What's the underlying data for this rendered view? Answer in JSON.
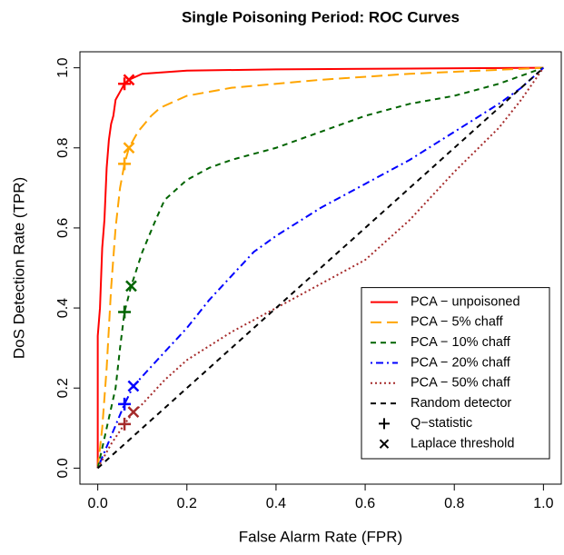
{
  "chart_data": {
    "type": "line",
    "title": "Single Poisoning Period: ROC Curves",
    "x_label": "False Alarm Rate (FPR)",
    "y_label": "DoS Detection Rate (TPR)",
    "xlim": [
      -0.04,
      1.04
    ],
    "ylim": [
      -0.04,
      1.04
    ],
    "xticks": [
      {
        "value": 0,
        "label": "0.0"
      },
      0.2,
      0.4,
      0.6,
      0.8,
      {
        "value": 1,
        "label": "1.0"
      }
    ],
    "yticks": [
      {
        "value": 0,
        "label": "0.0"
      },
      0.2,
      0.4,
      0.6,
      0.8,
      {
        "value": 1,
        "label": "1.0"
      }
    ],
    "legend": "bottomright",
    "series": [
      {
        "name": "PCA − unpoisoned",
        "color": "#ff0000",
        "dash": "solid",
        "x": [
          0,
          0,
          0.005,
          0.01,
          0.015,
          0.02,
          0.025,
          0.03,
          0.035,
          0.04,
          0.05,
          0.06,
          0.07,
          0.1,
          0.2,
          0.4,
          0.7,
          1
        ],
        "values": [
          0,
          0.33,
          0.4,
          0.55,
          0.62,
          0.75,
          0.82,
          0.86,
          0.88,
          0.92,
          0.94,
          0.96,
          0.97,
          0.985,
          0.993,
          0.996,
          0.998,
          1
        ]
      },
      {
        "name": "PCA − 5% chaff",
        "color": "#ffa500",
        "dash": "longdash",
        "x": [
          0,
          0.01,
          0.02,
          0.03,
          0.04,
          0.05,
          0.06,
          0.07,
          0.09,
          0.12,
          0.14,
          0.2,
          0.3,
          0.5,
          0.7,
          0.9,
          1
        ],
        "values": [
          0,
          0.1,
          0.25,
          0.45,
          0.6,
          0.7,
          0.76,
          0.8,
          0.84,
          0.88,
          0.9,
          0.93,
          0.95,
          0.97,
          0.985,
          0.995,
          1
        ]
      },
      {
        "name": "PCA − 10% chaff",
        "color": "#006400",
        "dash": "dashed",
        "x": [
          0,
          0.02,
          0.04,
          0.05,
          0.06,
          0.075,
          0.1,
          0.13,
          0.15,
          0.2,
          0.25,
          0.3,
          0.4,
          0.5,
          0.6,
          0.7,
          0.8,
          0.9,
          0.95,
          1
        ],
        "values": [
          0,
          0.1,
          0.2,
          0.3,
          0.39,
          0.455,
          0.54,
          0.62,
          0.67,
          0.72,
          0.75,
          0.77,
          0.8,
          0.84,
          0.88,
          0.91,
          0.93,
          0.96,
          0.98,
          1
        ]
      },
      {
        "name": "PCA − 20% chaff",
        "color": "#0000ff",
        "dash": "dotdash",
        "x": [
          0,
          0.03,
          0.06,
          0.08,
          0.15,
          0.2,
          0.25,
          0.3,
          0.35,
          0.4,
          0.5,
          0.6,
          0.7,
          0.8,
          0.9,
          0.95,
          1
        ],
        "values": [
          0,
          0.08,
          0.16,
          0.205,
          0.29,
          0.35,
          0.42,
          0.48,
          0.54,
          0.58,
          0.65,
          0.71,
          0.77,
          0.84,
          0.91,
          0.95,
          1
        ]
      },
      {
        "name": "PCA − 50% chaff",
        "color": "#a52a2a",
        "dash": "dotted",
        "x": [
          0,
          0.03,
          0.06,
          0.08,
          0.1,
          0.15,
          0.2,
          0.3,
          0.4,
          0.5,
          0.6,
          0.7,
          0.8,
          0.9,
          0.95,
          1
        ],
        "values": [
          0,
          0.06,
          0.11,
          0.14,
          0.16,
          0.22,
          0.27,
          0.34,
          0.4,
          0.46,
          0.52,
          0.62,
          0.74,
          0.85,
          0.92,
          1
        ]
      },
      {
        "name": "Random detector",
        "color": "#000000",
        "dash": "dashed",
        "x": [
          0,
          1
        ],
        "values": [
          0,
          1
        ]
      }
    ],
    "markers": [
      {
        "name": "Q−statistic",
        "symbol": "plus",
        "legend_color": "#000000",
        "colors": [
          "#ff0000",
          "#ffa500",
          "#006400",
          "#0000ff",
          "#a52a2a"
        ],
        "x": [
          0.06,
          0.06,
          0.06,
          0.06,
          0.06
        ],
        "values": [
          0.96,
          0.76,
          0.39,
          0.16,
          0.11
        ]
      },
      {
        "name": "Laplace threshold",
        "symbol": "cross",
        "legend_color": "#000000",
        "colors": [
          "#ff0000",
          "#ffa500",
          "#006400",
          "#0000ff",
          "#a52a2a"
        ],
        "x": [
          0.07,
          0.07,
          0.075,
          0.08,
          0.08
        ],
        "values": [
          0.97,
          0.8,
          0.455,
          0.205,
          0.14
        ]
      }
    ]
  }
}
